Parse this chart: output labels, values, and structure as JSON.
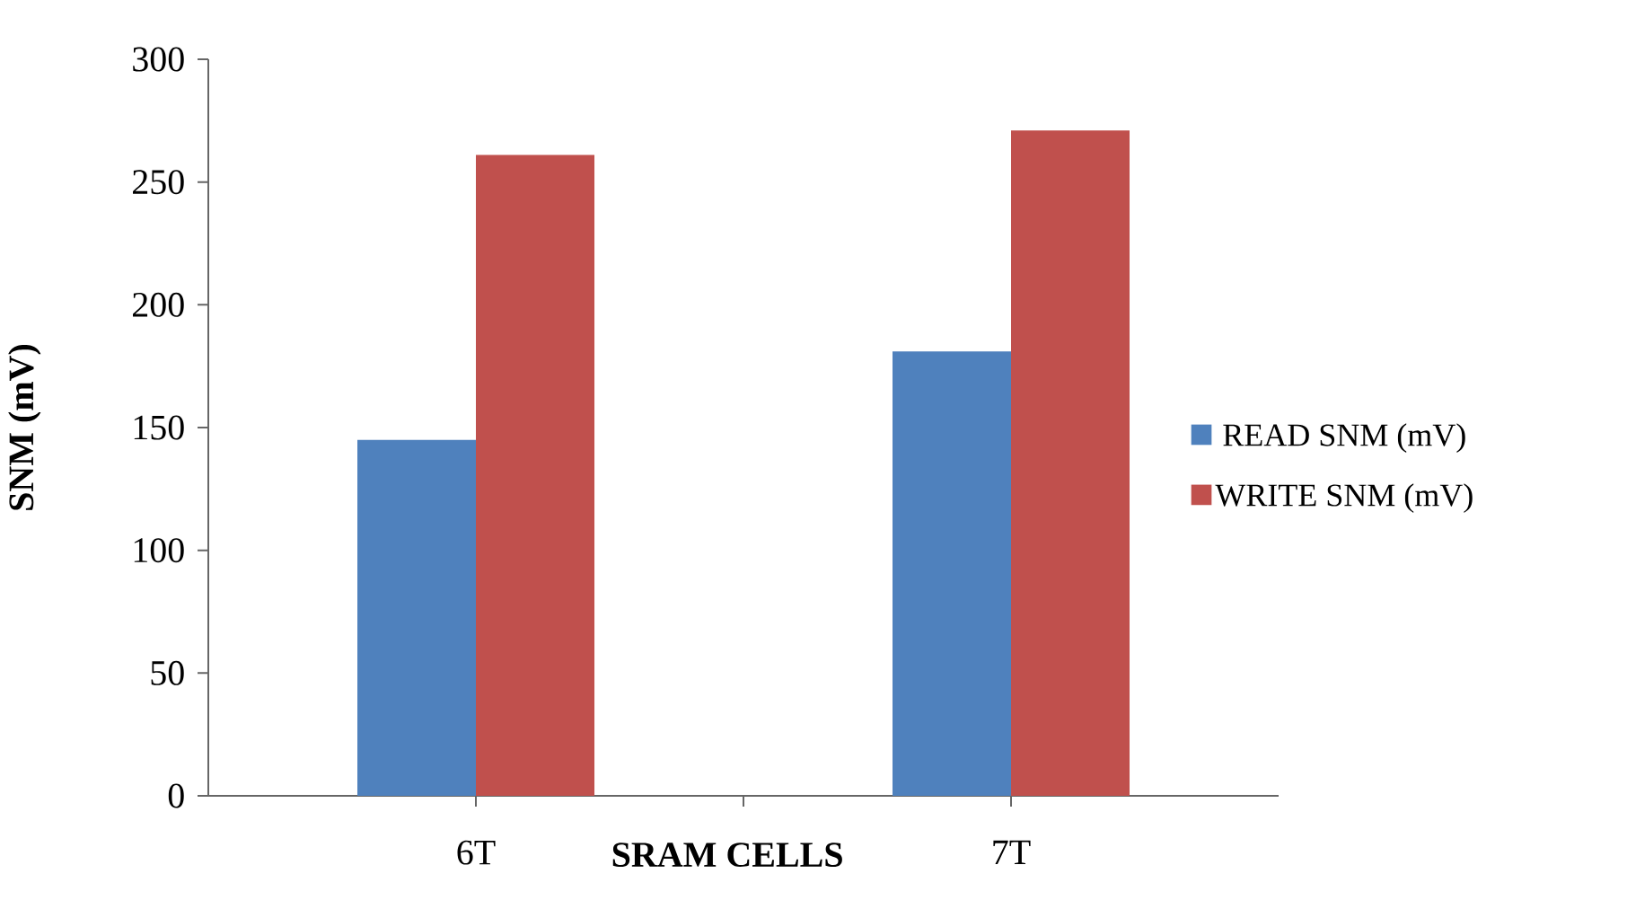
{
  "chart_data": {
    "type": "bar",
    "xlabel": "SRAM CELLS",
    "ylabel": "SNM (mV)",
    "categories": [
      "6T",
      "7T"
    ],
    "series": [
      {
        "name": "READ SNM (mV)",
        "color": "#4f81bd",
        "values": [
          145,
          181
        ]
      },
      {
        "name": "WRITE SNM (mV)",
        "color": "#c0504d",
        "values": [
          261,
          271
        ]
      }
    ],
    "ylim": [
      0,
      300
    ],
    "yticks": [
      0,
      50,
      100,
      150,
      200,
      250,
      300
    ],
    "legend": "right"
  }
}
